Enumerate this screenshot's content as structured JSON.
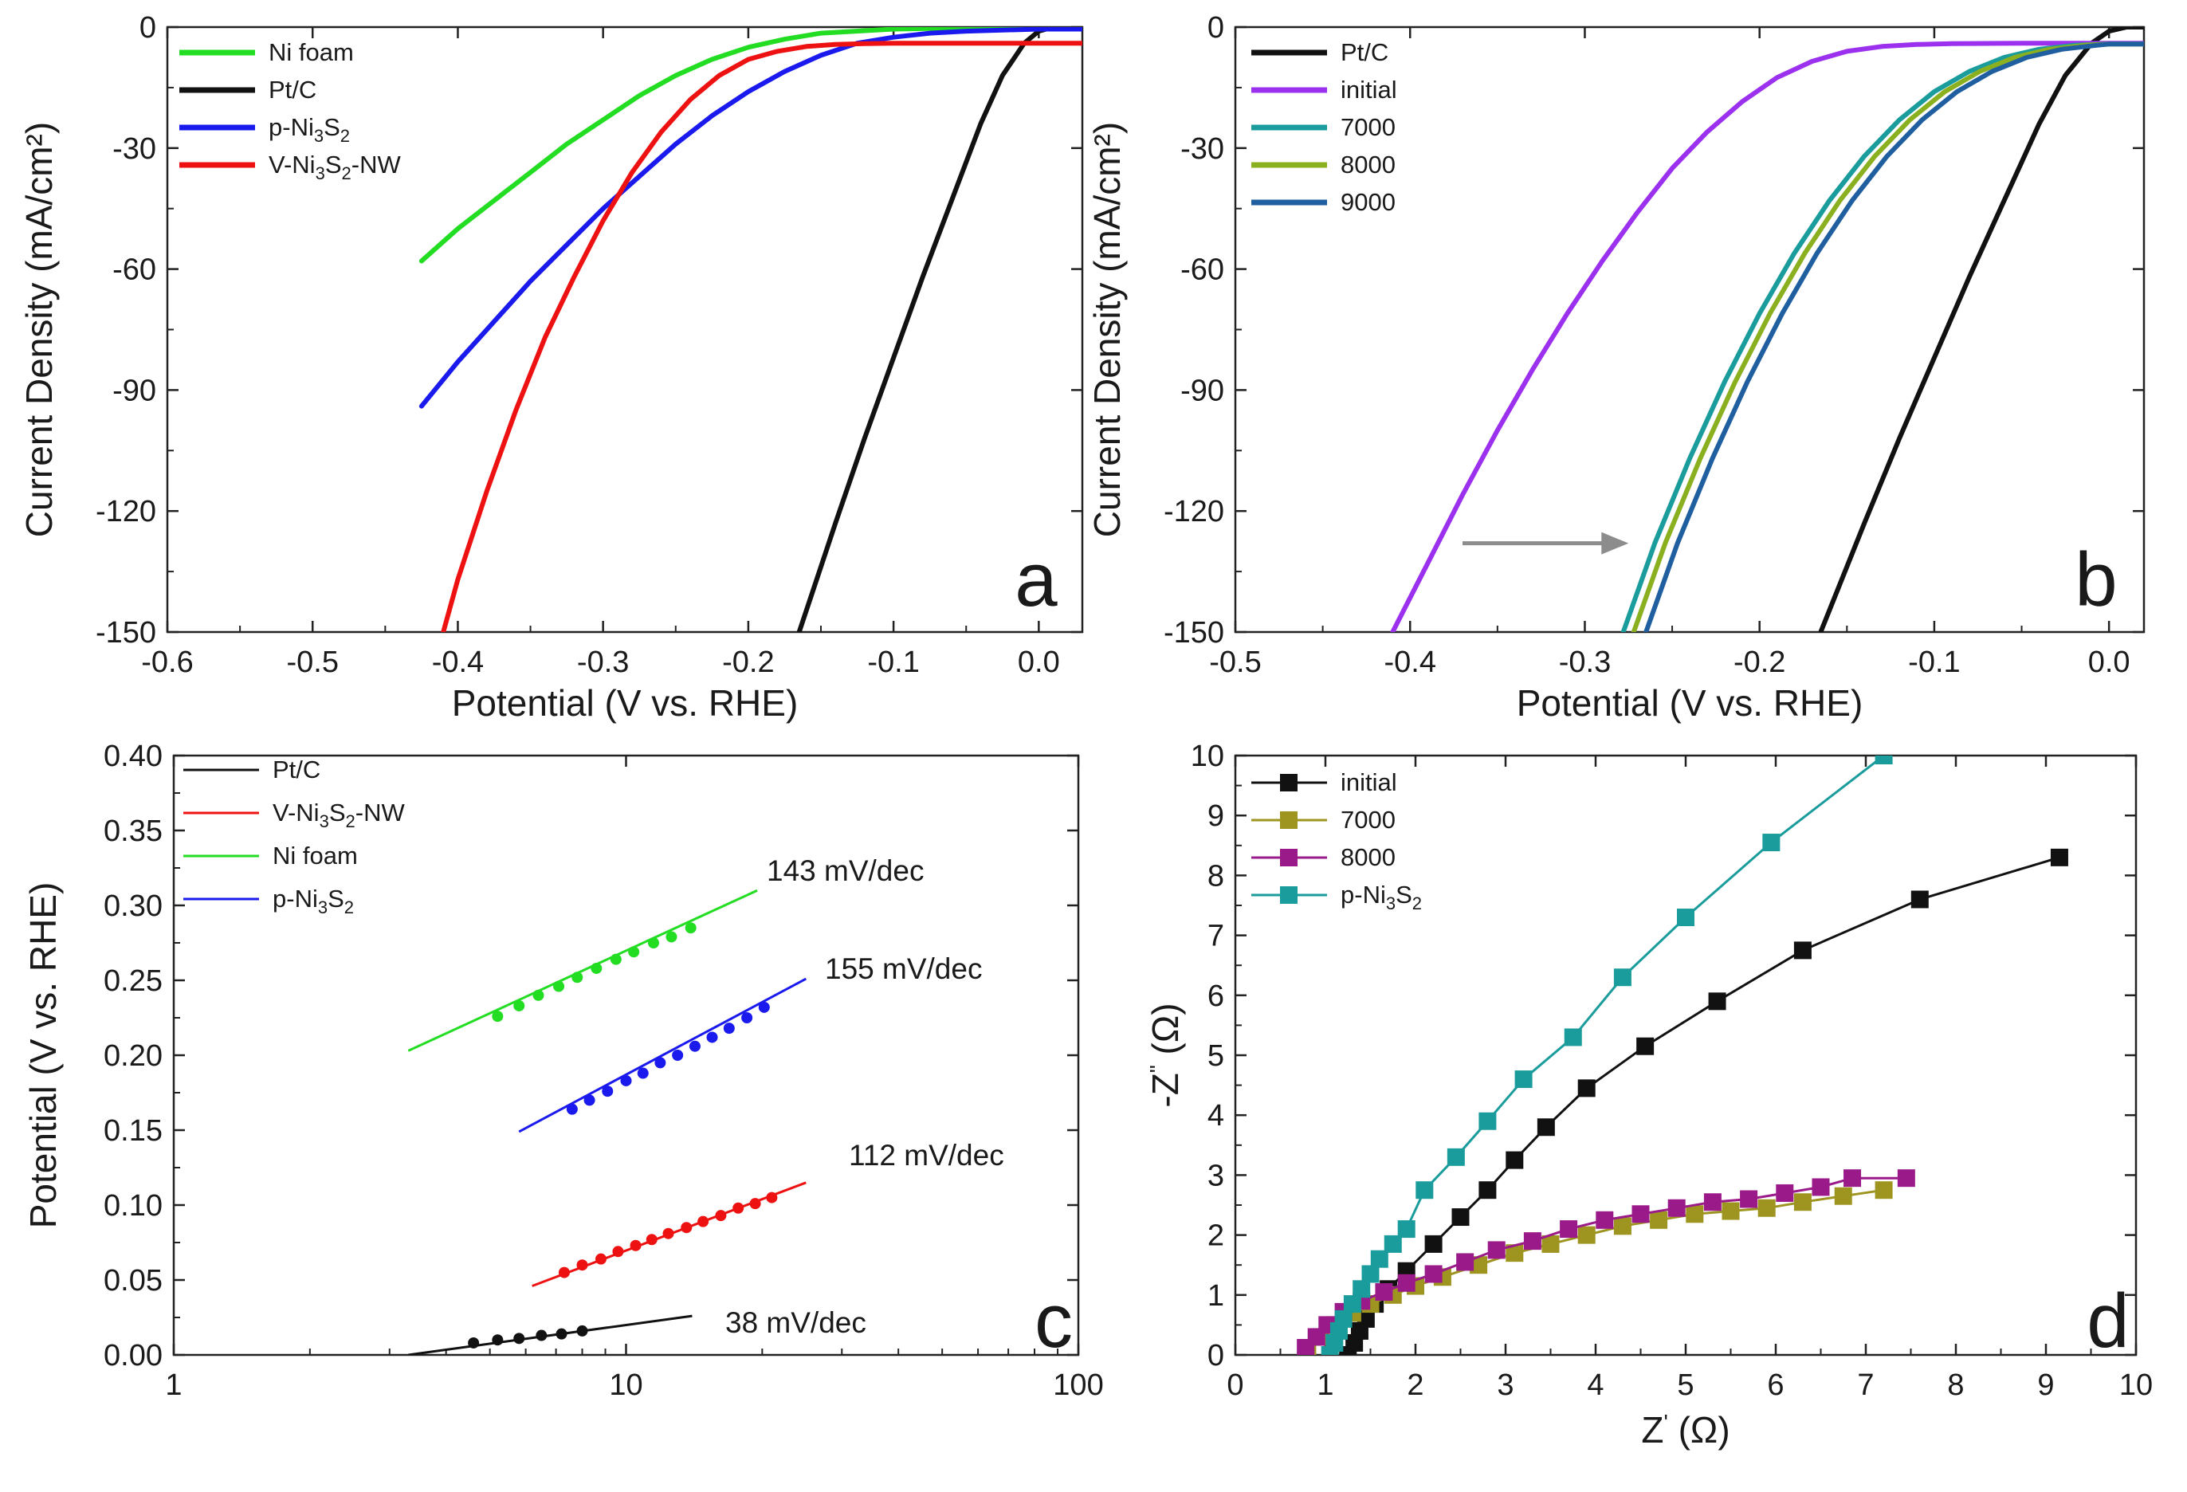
{
  "figure": {
    "panels": [
      "a",
      "b",
      "c",
      "d"
    ]
  },
  "chart_data": [
    {
      "id": "a",
      "type": "line",
      "panel_label": "a",
      "xlabel": "Potential (V vs. RHE)",
      "ylabel": "Current Density (mA/cm²)",
      "xlim": [
        -0.6,
        0.03
      ],
      "ylim": [
        -150,
        0
      ],
      "xticks": [
        -0.6,
        -0.5,
        -0.4,
        -0.3,
        -0.2,
        -0.1,
        0.0
      ],
      "xtick_labels": [
        "-0.6",
        "-0.5",
        "-0.4",
        "-0.3",
        "-0.2",
        "-0.1",
        "0.0"
      ],
      "yticks": [
        0,
        -30,
        -60,
        -90,
        -120,
        -150
      ],
      "ytick_labels": [
        "0",
        "-30",
        "-60",
        "-90",
        "-120",
        "-150"
      ],
      "legend_position": "top-left",
      "series": [
        {
          "name": "Ni foam",
          "label_main": "Ni foam",
          "color": "#22dd22",
          "x": [
            -0.425,
            -0.4,
            -0.375,
            -0.35,
            -0.325,
            -0.3,
            -0.275,
            -0.25,
            -0.225,
            -0.2,
            -0.175,
            -0.15,
            -0.1,
            -0.05,
            0.0,
            0.03
          ],
          "y": [
            -58,
            -50,
            -43,
            -36,
            -29,
            -23,
            -17,
            -12,
            -8,
            -5,
            -3,
            -1.5,
            -0.5,
            -0.2,
            0,
            0
          ]
        },
        {
          "name": "Pt/C",
          "label_main": "Pt/C",
          "color": "#111111",
          "x": [
            -0.165,
            -0.14,
            -0.12,
            -0.1,
            -0.08,
            -0.06,
            -0.04,
            -0.025,
            -0.01,
            0.0,
            0.01,
            0.03
          ],
          "y": [
            -150,
            -123,
            -102,
            -82,
            -62,
            -43,
            -24,
            -12,
            -4,
            -1,
            0,
            0
          ]
        },
        {
          "name": "p-Ni3S2",
          "label_main": "p-Ni",
          "label_sub1": "3",
          "label_mid": "S",
          "label_sub2": "2",
          "color": "#1a1aee",
          "x": [
            -0.425,
            -0.4,
            -0.375,
            -0.35,
            -0.325,
            -0.3,
            -0.275,
            -0.25,
            -0.225,
            -0.2,
            -0.175,
            -0.15,
            -0.125,
            -0.1,
            -0.075,
            -0.05,
            0.0,
            0.03
          ],
          "y": [
            -94,
            -83,
            -73,
            -63,
            -54,
            -45,
            -37,
            -29,
            -22,
            -16,
            -11,
            -7,
            -4,
            -2.5,
            -1.5,
            -1,
            -0.5,
            -0.5
          ]
        },
        {
          "name": "V-Ni3S2-NW",
          "label_main": "V-Ni",
          "label_sub1": "3",
          "label_mid": "S",
          "label_sub2": "2",
          "label_tail": "-NW",
          "color": "#ee1111",
          "x": [
            -0.41,
            -0.4,
            -0.38,
            -0.36,
            -0.34,
            -0.32,
            -0.3,
            -0.28,
            -0.26,
            -0.24,
            -0.22,
            -0.2,
            -0.18,
            -0.16,
            -0.14,
            -0.12,
            -0.1,
            -0.05,
            0.0,
            0.03
          ],
          "y": [
            -150,
            -137,
            -115,
            -95,
            -77,
            -62,
            -48,
            -36,
            -26,
            -18,
            -12,
            -8,
            -6,
            -4.8,
            -4.3,
            -4.1,
            -4.0,
            -4.0,
            -4.0,
            -4.0
          ]
        }
      ]
    },
    {
      "id": "b",
      "type": "line",
      "panel_label": "b",
      "xlabel": "Potential (V vs. RHE)",
      "ylabel": "Current Density (mA/cm²)",
      "xlim": [
        -0.5,
        0.02
      ],
      "ylim": [
        -150,
        0
      ],
      "xticks": [
        -0.5,
        -0.4,
        -0.3,
        -0.2,
        -0.1,
        0.0
      ],
      "xtick_labels": [
        "-0.5",
        "-0.4",
        "-0.3",
        "-0.2",
        "-0.1",
        "0.0"
      ],
      "yticks": [
        0,
        -30,
        -60,
        -90,
        -120,
        -150
      ],
      "ytick_labels": [
        "0",
        "-30",
        "-60",
        "-90",
        "-120",
        "-150"
      ],
      "legend_position": "top-left",
      "arrow": {
        "from": [
          -0.37,
          -128
        ],
        "to": [
          -0.275,
          -128
        ],
        "color": "#8c8c8c"
      },
      "series": [
        {
          "name": "Pt/C",
          "color": "#111111",
          "x": [
            -0.165,
            -0.14,
            -0.12,
            -0.1,
            -0.08,
            -0.06,
            -0.04,
            -0.025,
            -0.01,
            0.0,
            0.01,
            0.02
          ],
          "y": [
            -150,
            -123,
            -102,
            -82,
            -62,
            -43,
            -24,
            -12,
            -4,
            -1,
            0,
            0
          ]
        },
        {
          "name": "initial",
          "color": "#9b30ee",
          "x": [
            -0.41,
            -0.39,
            -0.37,
            -0.35,
            -0.33,
            -0.31,
            -0.29,
            -0.27,
            -0.25,
            -0.23,
            -0.21,
            -0.19,
            -0.17,
            -0.15,
            -0.13,
            -0.11,
            -0.09,
            -0.05,
            0.0,
            0.02
          ],
          "y": [
            -150,
            -133,
            -116,
            -100,
            -85,
            -71,
            -58,
            -46,
            -35,
            -26,
            -18.5,
            -12.5,
            -8.5,
            -6,
            -4.8,
            -4.3,
            -4.1,
            -4.0,
            -4.0,
            -4.0
          ]
        },
        {
          "name": "7000",
          "color": "#1a9c9c",
          "x": [
            -0.278,
            -0.26,
            -0.24,
            -0.22,
            -0.2,
            -0.18,
            -0.16,
            -0.14,
            -0.12,
            -0.1,
            -0.08,
            -0.06,
            -0.04,
            -0.02,
            0.0,
            0.02
          ],
          "y": [
            -150,
            -128,
            -107,
            -88,
            -71,
            -56,
            -43,
            -32,
            -23,
            -16,
            -11,
            -7.5,
            -5.5,
            -4.5,
            -4.2,
            -4.2
          ]
        },
        {
          "name": "8000",
          "color": "#8ab020",
          "x": [
            -0.272,
            -0.254,
            -0.234,
            -0.214,
            -0.194,
            -0.174,
            -0.154,
            -0.134,
            -0.114,
            -0.094,
            -0.074,
            -0.054,
            -0.034,
            -0.014,
            0.0,
            0.02
          ],
          "y": [
            -150,
            -128,
            -107,
            -88,
            -71,
            -56,
            -43,
            -32,
            -23,
            -16,
            -11,
            -7.5,
            -5.5,
            -4.5,
            -4.2,
            -4.2
          ]
        },
        {
          "name": "9000",
          "color": "#1f5fa0",
          "x": [
            -0.265,
            -0.247,
            -0.227,
            -0.207,
            -0.187,
            -0.167,
            -0.147,
            -0.127,
            -0.107,
            -0.087,
            -0.067,
            -0.047,
            -0.027,
            -0.007,
            0.0,
            0.02
          ],
          "y": [
            -150,
            -128,
            -107,
            -88,
            -71,
            -56,
            -43,
            -32,
            -23,
            -16,
            -11,
            -7.5,
            -5.5,
            -4.5,
            -4.2,
            -4.2
          ]
        }
      ]
    },
    {
      "id": "c",
      "type": "scatter",
      "panel_label": "c",
      "xscale": "log",
      "xlabel": "",
      "ylabel": "Potential (V vs. RHE)",
      "xlim": [
        1,
        100
      ],
      "ylim": [
        0,
        0.4
      ],
      "xticks": [
        1,
        10,
        100
      ],
      "xtick_labels": [
        "1",
        "10",
        "100"
      ],
      "yticks": [
        0.0,
        0.05,
        0.1,
        0.15,
        0.2,
        0.25,
        0.3,
        0.35,
        0.4
      ],
      "ytick_labels": [
        "0.00",
        "0.05",
        "0.10",
        "0.15",
        "0.20",
        "0.25",
        "0.30",
        "0.35",
        "0.40"
      ],
      "legend_position": "top-left",
      "series": [
        {
          "name": "Pt/C",
          "label_main": "Pt/C",
          "color": "#111111",
          "slope_label": "38 mV/dec",
          "fit_x": [
            3.3,
            14
          ],
          "fit_y": [
            0.0,
            0.026
          ],
          "points_x": [
            4.6,
            5.2,
            5.8,
            6.5,
            7.2,
            8.0
          ],
          "points_y": [
            0.008,
            0.01,
            0.011,
            0.013,
            0.014,
            0.016
          ]
        },
        {
          "name": "V-Ni3S2-NW",
          "label_main": "V-Ni",
          "label_sub1": "3",
          "label_mid": "S",
          "label_sub2": "2",
          "label_tail": "-NW",
          "color": "#ee1111",
          "slope_label": "112 mV/dec",
          "fit_x": [
            6.2,
            25
          ],
          "fit_y": [
            0.046,
            0.115
          ],
          "points_x": [
            7.3,
            8.0,
            8.8,
            9.6,
            10.5,
            11.4,
            12.4,
            13.6,
            14.8,
            16.2,
            17.7,
            19.3,
            21.0
          ],
          "points_y": [
            0.055,
            0.06,
            0.064,
            0.069,
            0.073,
            0.077,
            0.081,
            0.085,
            0.089,
            0.093,
            0.098,
            0.101,
            0.105
          ]
        },
        {
          "name": "Ni foam",
          "label_main": "Ni foam",
          "color": "#22dd22",
          "slope_label": "143 mV/dec",
          "fit_x": [
            3.3,
            19.5
          ],
          "fit_y": [
            0.203,
            0.31
          ],
          "points_x": [
            5.2,
            5.8,
            6.4,
            7.1,
            7.8,
            8.6,
            9.5,
            10.4,
            11.5,
            12.6,
            13.9
          ],
          "points_y": [
            0.226,
            0.233,
            0.24,
            0.246,
            0.252,
            0.258,
            0.264,
            0.269,
            0.275,
            0.279,
            0.285
          ]
        },
        {
          "name": "p-Ni3S2",
          "label_main": "p-Ni",
          "label_sub1": "3",
          "label_mid": "S",
          "label_sub2": "2",
          "color": "#1a1aee",
          "slope_label": "155 mV/dec",
          "fit_x": [
            5.8,
            25
          ],
          "fit_y": [
            0.149,
            0.251
          ],
          "points_x": [
            7.6,
            8.3,
            9.1,
            10.0,
            10.9,
            11.9,
            13.0,
            14.2,
            15.5,
            16.9,
            18.5,
            20.2
          ],
          "points_y": [
            0.164,
            0.17,
            0.176,
            0.183,
            0.188,
            0.195,
            0.2,
            0.206,
            0.212,
            0.218,
            0.225,
            0.232
          ]
        }
      ]
    },
    {
      "id": "d",
      "type": "scatter",
      "panel_label": "d",
      "xlabel_main": "Z",
      "xlabel_sup": "'",
      "xlabel_unit": " (Ω)",
      "ylabel_main": "-Z",
      "ylabel_sup": "\"",
      "ylabel_unit": " (Ω)",
      "xlim": [
        0,
        10
      ],
      "ylim": [
        0,
        10
      ],
      "xticks": [
        0,
        1,
        2,
        3,
        4,
        5,
        6,
        7,
        8,
        9,
        10
      ],
      "xtick_labels": [
        "0",
        "1",
        "2",
        "3",
        "4",
        "5",
        "6",
        "7",
        "8",
        "9",
        "10"
      ],
      "yticks": [
        0,
        1,
        2,
        3,
        4,
        5,
        6,
        7,
        8,
        9,
        10
      ],
      "ytick_labels": [
        "0",
        "1",
        "2",
        "3",
        "4",
        "5",
        "6",
        "7",
        "8",
        "9",
        "10"
      ],
      "legend_position": "top-left",
      "series": [
        {
          "name": "initial",
          "label_main": "initial",
          "color": "#111111",
          "x": [
            1.25,
            1.32,
            1.38,
            1.45,
            1.55,
            1.7,
            1.9,
            2.2,
            2.5,
            2.8,
            3.1,
            3.45,
            3.9,
            4.55,
            5.35,
            6.3,
            7.6,
            9.15
          ],
          "y": [
            0.0,
            0.2,
            0.4,
            0.6,
            0.85,
            1.1,
            1.4,
            1.85,
            2.3,
            2.75,
            3.25,
            3.8,
            4.45,
            5.15,
            5.9,
            6.75,
            7.6,
            8.3
          ]
        },
        {
          "name": "7000",
          "label_main": "7000",
          "color": "#9e9420",
          "x": [
            0.8,
            0.95,
            1.1,
            1.3,
            1.5,
            1.75,
            2.0,
            2.3,
            2.7,
            3.1,
            3.5,
            3.9,
            4.3,
            4.7,
            5.1,
            5.5,
            5.9,
            6.3,
            6.75,
            7.2
          ],
          "y": [
            0.1,
            0.3,
            0.5,
            0.7,
            0.85,
            1.0,
            1.15,
            1.3,
            1.5,
            1.7,
            1.85,
            2.0,
            2.15,
            2.25,
            2.35,
            2.4,
            2.45,
            2.55,
            2.65,
            2.75
          ]
        },
        {
          "name": "8000",
          "label_main": "8000",
          "color": "#9a1a8a",
          "x": [
            0.78,
            0.9,
            1.02,
            1.2,
            1.4,
            1.65,
            1.9,
            2.2,
            2.55,
            2.9,
            3.3,
            3.7,
            4.1,
            4.5,
            4.9,
            5.3,
            5.7,
            6.1,
            6.5,
            6.85,
            7.45
          ],
          "y": [
            0.12,
            0.3,
            0.5,
            0.72,
            0.9,
            1.05,
            1.2,
            1.35,
            1.55,
            1.75,
            1.9,
            2.1,
            2.25,
            2.35,
            2.45,
            2.55,
            2.6,
            2.7,
            2.8,
            2.95,
            2.95
          ]
        },
        {
          "name": "p-Ni3S2",
          "label_main": "p-Ni",
          "label_sub1": "3",
          "label_mid": "S",
          "label_sub2": "2",
          "color": "#1a9c9c",
          "x": [
            1.05,
            1.1,
            1.15,
            1.2,
            1.3,
            1.4,
            1.5,
            1.6,
            1.75,
            1.9,
            2.1,
            2.45,
            2.8,
            3.2,
            3.75,
            4.3,
            5.0,
            5.95,
            7.2
          ],
          "y": [
            0.0,
            0.2,
            0.4,
            0.6,
            0.85,
            1.1,
            1.35,
            1.6,
            1.85,
            2.1,
            2.75,
            3.3,
            3.9,
            4.6,
            5.3,
            6.3,
            7.3,
            8.55,
            10.0
          ]
        }
      ]
    }
  ]
}
